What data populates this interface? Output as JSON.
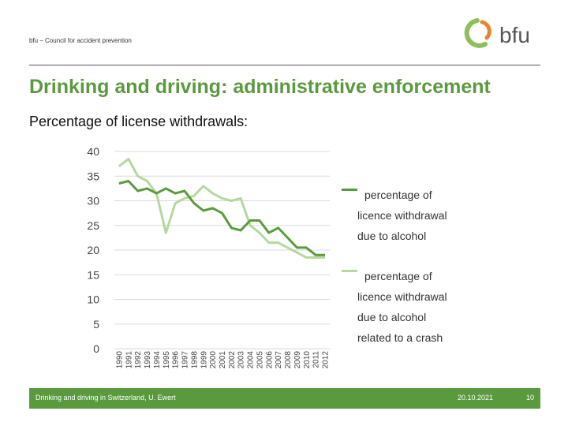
{
  "header": {
    "org": "bfu – Council for accident prevention",
    "logo_text": "bfu"
  },
  "title": "Drinking and driving: administrative enforcement",
  "subtitle": "Percentage of license withdrawals:",
  "colors": {
    "accent": "#5a9a3e",
    "series_dark": "#5a9a3e",
    "series_light": "#b5d8a0"
  },
  "chart_data": {
    "type": "line",
    "x": [
      "1990",
      "1991",
      "1992",
      "1993",
      "1994",
      "1995",
      "1996",
      "1997",
      "1998",
      "1999",
      "2000",
      "2001",
      "2002",
      "2003",
      "2004",
      "2005",
      "2006",
      "2007",
      "2008",
      "2009",
      "2010",
      "2011",
      "2012"
    ],
    "ylim": [
      0,
      40
    ],
    "yticks": [
      "0",
      "5",
      "10",
      "15",
      "20",
      "25",
      "30",
      "35",
      "40"
    ],
    "grid": true,
    "series": [
      {
        "name": "percentage of licence withdrawal due to alcohol",
        "legend_lines": [
          "percentage of",
          "licence withdrawal",
          "due to alcohol"
        ],
        "values": [
          33.5,
          34,
          32,
          32.5,
          31.5,
          32.5,
          31.5,
          32,
          29.5,
          28,
          28.5,
          27.5,
          24.5,
          24,
          26,
          26,
          23.5,
          24.5,
          22.5,
          20.5,
          20.5,
          19,
          19
        ]
      },
      {
        "name": "percentage of licence withdrawal due to alcohol related to a crash",
        "legend_lines": [
          "percentage of",
          "licence withdrawal",
          "due to alcohol",
          "related to a crash"
        ],
        "values": [
          37,
          38.5,
          35,
          34,
          31.5,
          23.5,
          29.5,
          30.5,
          31,
          33,
          31.5,
          30.5,
          30,
          30.5,
          25,
          23.5,
          21.5,
          21.5,
          20.5,
          19.5,
          18.5,
          18.5,
          18.5
        ]
      }
    ]
  },
  "footer": {
    "left": "Drinking and driving in Switzerland, U. Ewert",
    "date": "20.10.2021",
    "page": "10"
  }
}
